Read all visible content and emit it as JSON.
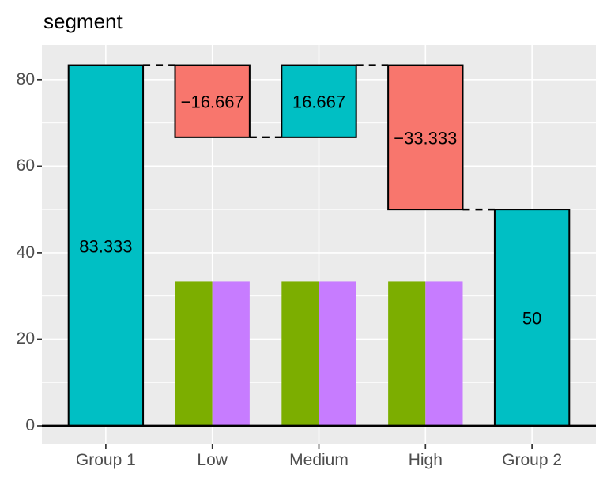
{
  "chart_data": {
    "type": "bar",
    "subtype": "waterfall",
    "title": "segment",
    "categories": [
      "Group 1",
      "Low",
      "Medium",
      "High",
      "Group 2"
    ],
    "series": [
      {
        "name": "waterfall",
        "bars": [
          {
            "category": "Group 1",
            "start": 0,
            "end": 83.333,
            "label": "83.333",
            "color_key": "increase"
          },
          {
            "category": "Low",
            "start": 83.333,
            "end": 66.667,
            "label": "−16.667",
            "color_key": "decrease"
          },
          {
            "category": "Medium",
            "start": 66.667,
            "end": 83.333,
            "label": "16.667",
            "color_key": "increase"
          },
          {
            "category": "High",
            "start": 83.333,
            "end": 50,
            "label": "−33.333",
            "color_key": "decrease"
          },
          {
            "category": "Group 2",
            "start": 0,
            "end": 50,
            "label": "50",
            "color_key": "increase"
          }
        ]
      },
      {
        "name": "dodged",
        "categories": [
          "Low",
          "Medium",
          "High"
        ],
        "groups": [
          {
            "color_key": "green",
            "values": [
              33.333,
              33.333,
              33.333
            ]
          },
          {
            "color_key": "purple",
            "values": [
              33.333,
              33.333,
              33.333
            ]
          }
        ]
      }
    ],
    "connectors": [
      {
        "from": "Group 1",
        "to": "Low",
        "value": 83.333
      },
      {
        "from": "Low",
        "to": "Medium",
        "value": 66.667
      },
      {
        "from": "Medium",
        "to": "High",
        "value": 83.333
      },
      {
        "from": "High",
        "to": "Group 2",
        "value": 50
      }
    ],
    "zero_line": 0,
    "y_axis": {
      "ticks": [
        0,
        20,
        40,
        60,
        80
      ],
      "minor_ticks": [
        10,
        30,
        50,
        70
      ],
      "range": [
        -4.2,
        88.0
      ]
    },
    "x_axis": {
      "labels": [
        "Group 1",
        "Low",
        "Medium",
        "High",
        "Group 2"
      ]
    },
    "legend": "none",
    "grid": "on",
    "colors": {
      "increase": "#00BFC4",
      "decrease": "#F8766D",
      "green": "#7CAE00",
      "purple": "#C77CFF",
      "bar_border": "#000000",
      "connector": "#000000",
      "zero_line": "#000000",
      "panel_bg": "#EBEBEB",
      "grid": "#FFFFFF",
      "axis_text": "#4D4D4D",
      "tick": "#333333",
      "bar_label": "#000000",
      "title": "#000000",
      "background": "#FFFFFF"
    }
  }
}
